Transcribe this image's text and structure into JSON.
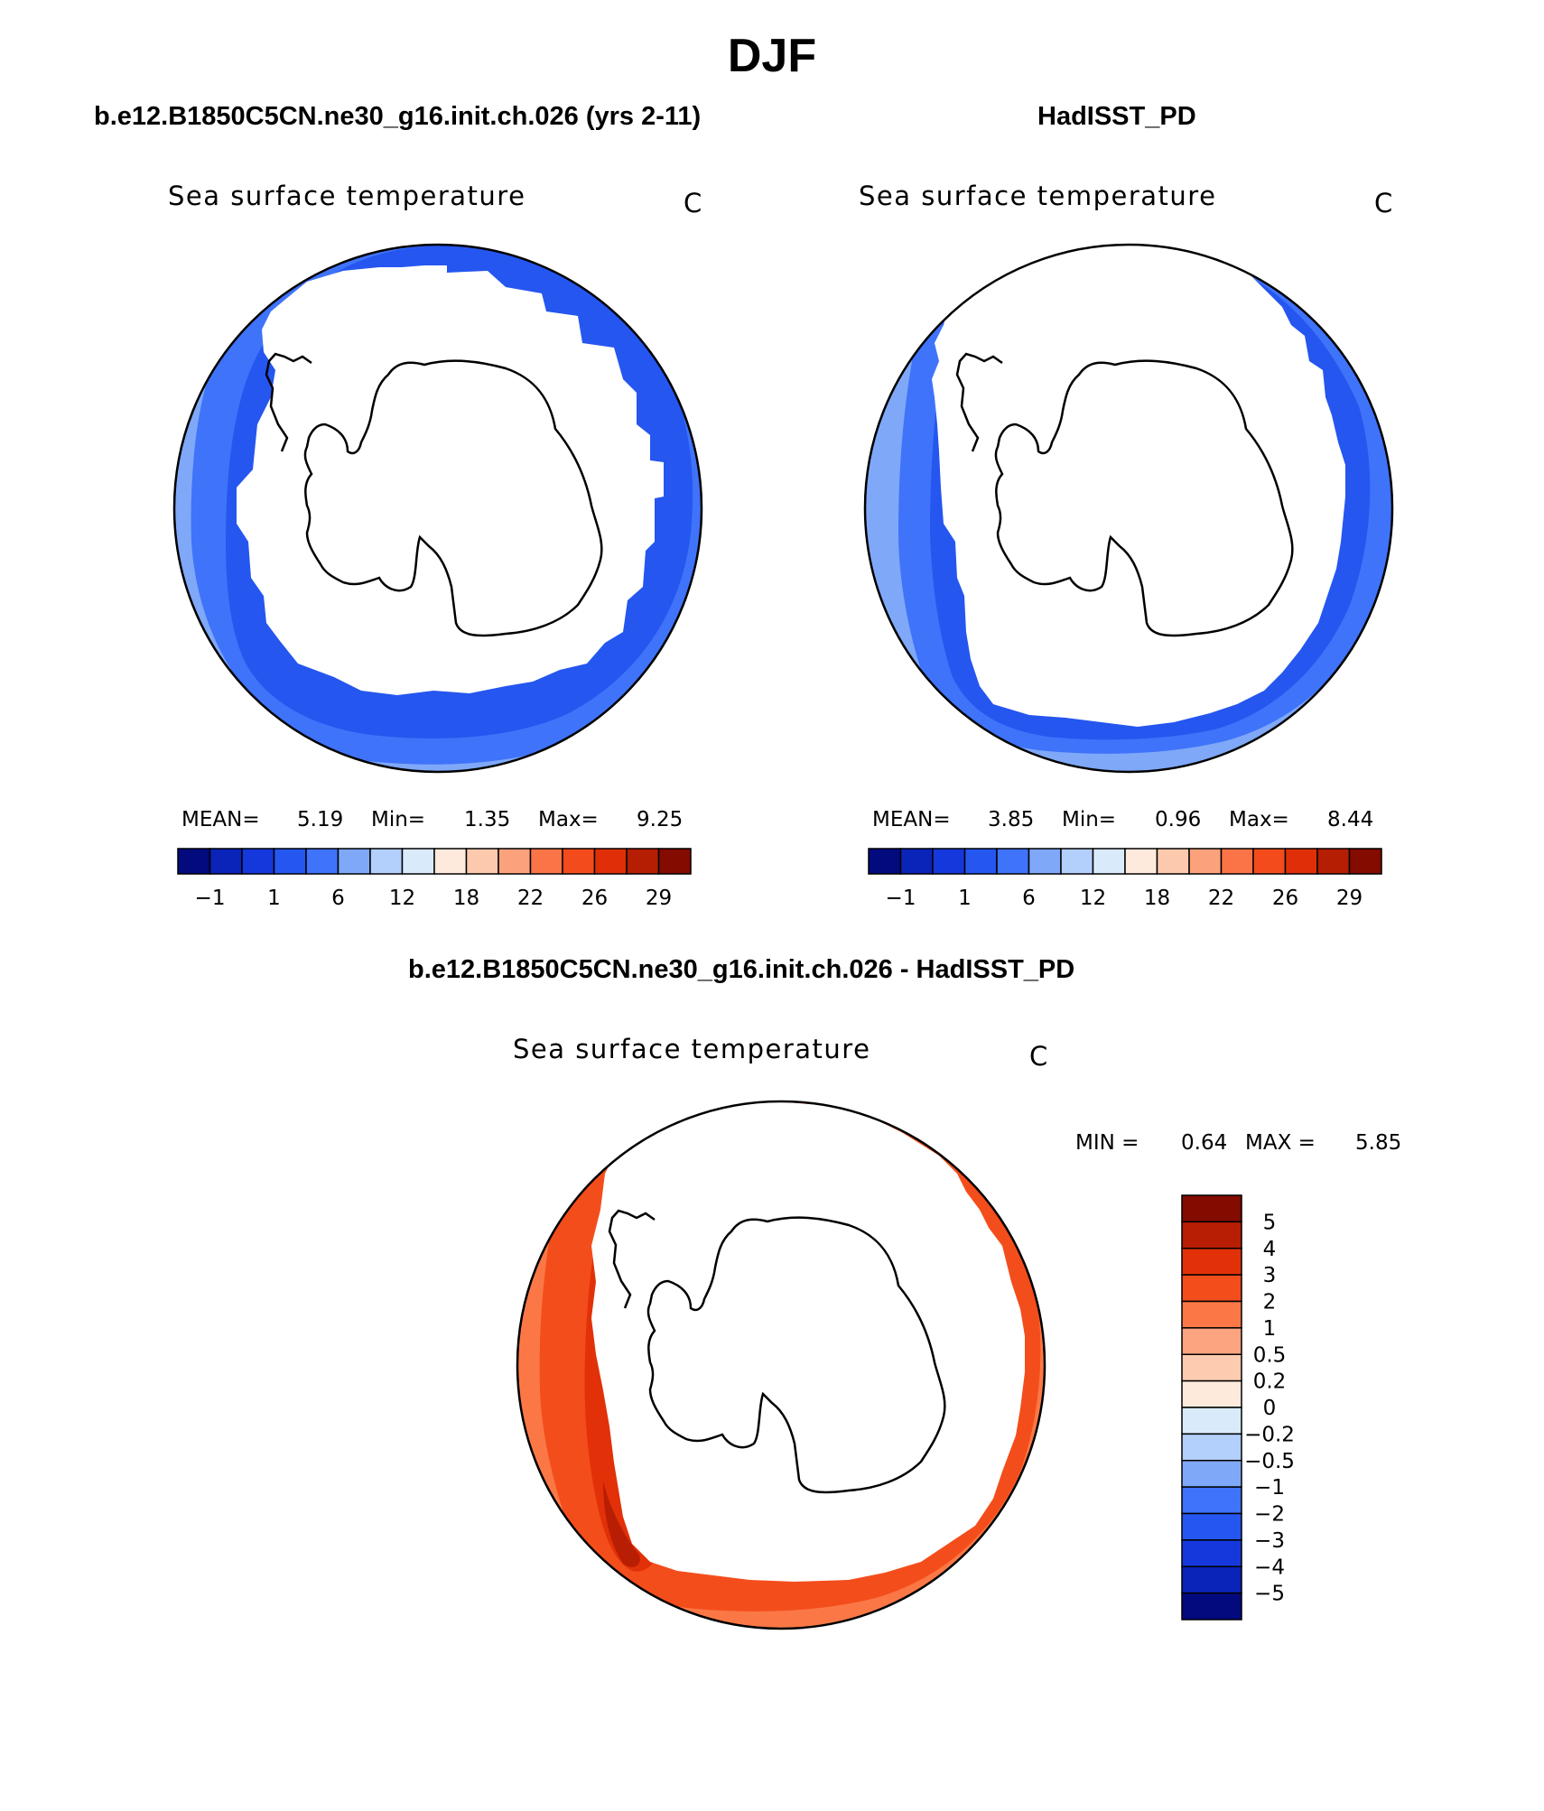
{
  "page": {
    "title": "DJF"
  },
  "colors": {
    "land": "#ffffff",
    "outline": "#000000",
    "colormap": [
      "#030a7e",
      "#0a23b8",
      "#1538dc",
      "#2556ef",
      "#3f73fa",
      "#7fa8f8",
      "#b3cffb",
      "#d9ebfb",
      "#fdeadc",
      "#fcc9ad",
      "#fba27c",
      "#fa7447",
      "#f44b1c",
      "#e02f08",
      "#b51e03",
      "#830b00"
    ],
    "diff_colormap": [
      "#830b00",
      "#b81e03",
      "#e23108",
      "#f44d1c",
      "#fb7846",
      "#fba47f",
      "#fdcbb0",
      "#fdeadb",
      "#d9ebfb",
      "#b3cffb",
      "#7fa8f8",
      "#3f73fa",
      "#2556ef",
      "#1538dc",
      "#0a23b8",
      "#030a7e"
    ]
  },
  "panels": [
    {
      "id": "model",
      "subtitle": "b.e12.B1850C5CN.ne30_g16.init.ch.026 (yrs 2-11)",
      "variable_label": "Sea surface temperature",
      "units": "C",
      "stats": {
        "mean_label": "MEAN=",
        "mean": "5.19",
        "min_label": "Min=",
        "min": "1.35",
        "max_label": "Max=",
        "max": "9.25"
      },
      "colorbar_ticks": [
        "−1",
        "1",
        "6",
        "12",
        "18",
        "22",
        "26",
        "29"
      ],
      "fill": {
        "outer": "#7fa8f8",
        "middle": "#3f73fa",
        "inner": "#2556ef"
      }
    },
    {
      "id": "obs",
      "subtitle": "HadISST_PD",
      "variable_label": "Sea surface temperature",
      "units": "C",
      "stats": {
        "mean_label": "MEAN=",
        "mean": "3.85",
        "min_label": "Min=",
        "min": "0.96",
        "max_label": "Max=",
        "max": "8.44"
      },
      "colorbar_ticks": [
        "−1",
        "1",
        "6",
        "12",
        "18",
        "22",
        "26",
        "29"
      ],
      "fill": {
        "outer": "#7fa8f8",
        "middle": "#3f73fa",
        "inner": "#2556ef"
      }
    },
    {
      "id": "diff",
      "subtitle": "b.e12.B1850C5CN.ne30_g16.init.ch.026 - HadISST_PD",
      "variable_label": "Sea surface temperature",
      "units": "C",
      "stats": {
        "min_label": "MIN =",
        "min": "0.64",
        "max_label": "MAX =",
        "max": "5.85"
      },
      "colorbar_ticks": [
        "5",
        "4",
        "3",
        "2",
        "1",
        "0.5",
        "0.2",
        "0",
        "−0.2",
        "−0.5",
        "−1",
        "−2",
        "−3",
        "−4",
        "−5"
      ],
      "fill": {
        "outer": "#fb7846",
        "middle": "#f44d1c",
        "inner": "#e23108",
        "hot": "#b81e03"
      }
    }
  ]
}
